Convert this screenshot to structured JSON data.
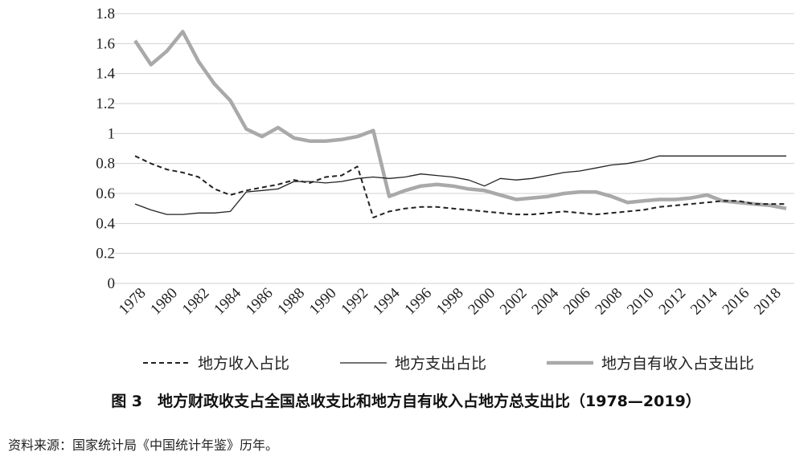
{
  "caption": "图 3　地方财政收支占全国总收支比和地方自有收入占地方总支出比（1978—2019）",
  "source": "资料来源：国家统计局《中国统计年鉴》历年。",
  "chart_data": {
    "type": "line",
    "title": "",
    "xlabel": "",
    "ylabel": "",
    "ylim": [
      0,
      1.8
    ],
    "yticks": [
      "0",
      "0.2",
      "0.4",
      "0.6",
      "0.8",
      "1",
      "1.2",
      "1.4",
      "1.6",
      "1.8"
    ],
    "xticks": [
      "1978",
      "1980",
      "1982",
      "1984",
      "1986",
      "1988",
      "1990",
      "1992",
      "1994",
      "1996",
      "1998",
      "2000",
      "2002",
      "2004",
      "2006",
      "2008",
      "2010",
      "2012",
      "2014",
      "2016",
      "2018"
    ],
    "grid": "horizontal",
    "legend_position": "bottom",
    "x": [
      1978,
      1979,
      1980,
      1981,
      1982,
      1983,
      1984,
      1985,
      1986,
      1987,
      1988,
      1989,
      1990,
      1991,
      1992,
      1993,
      1994,
      1995,
      1996,
      1997,
      1998,
      1999,
      2000,
      2001,
      2002,
      2003,
      2004,
      2005,
      2006,
      2007,
      2008,
      2009,
      2010,
      2011,
      2012,
      2013,
      2014,
      2015,
      2016,
      2017,
      2018,
      2019
    ],
    "series": [
      {
        "name": "地方收入占比",
        "style": "dashed",
        "color": "#222222",
        "values": [
          0.85,
          0.8,
          0.76,
          0.74,
          0.71,
          0.63,
          0.59,
          0.62,
          0.64,
          0.66,
          0.69,
          0.67,
          0.71,
          0.72,
          0.78,
          0.44,
          0.48,
          0.5,
          0.51,
          0.51,
          0.5,
          0.49,
          0.48,
          0.47,
          0.46,
          0.46,
          0.47,
          0.48,
          0.47,
          0.46,
          0.47,
          0.48,
          0.49,
          0.51,
          0.52,
          0.53,
          0.54,
          0.55,
          0.55,
          0.53,
          0.53,
          0.53
        ]
      },
      {
        "name": "地方支出占比",
        "style": "solid",
        "color": "#222222",
        "values": [
          0.53,
          0.49,
          0.46,
          0.46,
          0.47,
          0.47,
          0.48,
          0.61,
          0.62,
          0.63,
          0.68,
          0.68,
          0.67,
          0.68,
          0.7,
          0.71,
          0.7,
          0.71,
          0.73,
          0.72,
          0.71,
          0.69,
          0.65,
          0.7,
          0.69,
          0.7,
          0.72,
          0.74,
          0.75,
          0.77,
          0.79,
          0.8,
          0.82,
          0.85,
          0.85,
          0.85,
          0.85,
          0.85,
          0.85,
          0.85,
          0.85,
          0.85
        ]
      },
      {
        "name": "地方自有收入占支出比",
        "style": "thick",
        "color": "#aaaaaa",
        "values": [
          1.62,
          1.46,
          1.55,
          1.68,
          1.48,
          1.33,
          1.22,
          1.03,
          0.98,
          1.04,
          0.97,
          0.95,
          0.95,
          0.96,
          0.98,
          1.02,
          0.58,
          0.62,
          0.65,
          0.66,
          0.65,
          0.63,
          0.62,
          0.59,
          0.56,
          0.57,
          0.58,
          0.6,
          0.61,
          0.61,
          0.58,
          0.54,
          0.55,
          0.56,
          0.56,
          0.57,
          0.59,
          0.55,
          0.54,
          0.53,
          0.52,
          0.5
        ]
      }
    ]
  }
}
